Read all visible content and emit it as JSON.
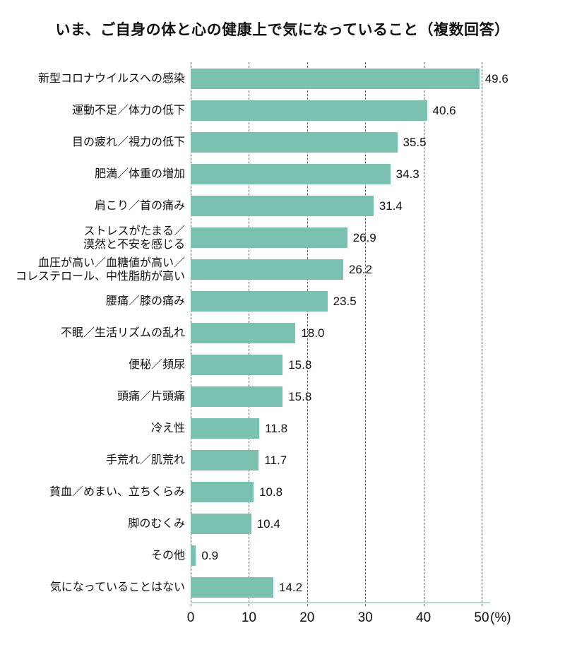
{
  "title": "いま、ご自身の体と心の健康上で気になっていること（複数回答）",
  "chart_data": {
    "type": "bar",
    "orientation": "horizontal",
    "title": "いま、ご自身の体と心の健康上で気になっていること（複数回答）",
    "categories": [
      "新型コロナウイルスへの感染",
      "運動不足／体力の低下",
      "目の疲れ／視力の低下",
      "肥満／体重の増加",
      "肩こり／首の痛み",
      "ストレスがたまる／\n漠然と不安を感じる",
      "血圧が高い／血糖値が高い／\nコレステロール、中性脂肪が高い",
      "腰痛／膝の痛み",
      "不眠／生活リズムの乱れ",
      "便秘／頻尿",
      "頭痛／片頭痛",
      "冷え性",
      "手荒れ／肌荒れ",
      "貧血／めまい、立ちくらみ",
      "脚のむくみ",
      "その他",
      "気になっていることはない"
    ],
    "values": [
      49.6,
      40.6,
      35.5,
      34.3,
      31.4,
      26.9,
      26.2,
      23.5,
      18.0,
      15.8,
      15.8,
      11.8,
      11.7,
      10.8,
      10.4,
      0.9,
      14.2
    ],
    "value_labels": [
      "49.6",
      "40.6",
      "35.5",
      "34.3",
      "31.4",
      "26.9",
      "26.2",
      "23.5",
      "18.0",
      "15.8",
      "15.8",
      "11.8",
      "11.7",
      "10.8",
      "10.4",
      "0.9",
      "14.2"
    ],
    "xlim": [
      0,
      50
    ],
    "x_ticks": [
      "0",
      "10",
      "20",
      "30",
      "40",
      "50"
    ],
    "x_unit": "(%)",
    "grid": "dashed-vertical-gridlines",
    "legend": "none",
    "bar_color": "#7ac1b2",
    "gridline_color": "#595959",
    "axis_line_color": "#b2d8d0",
    "text_color": "#111111",
    "background_color": "#ffffff"
  }
}
